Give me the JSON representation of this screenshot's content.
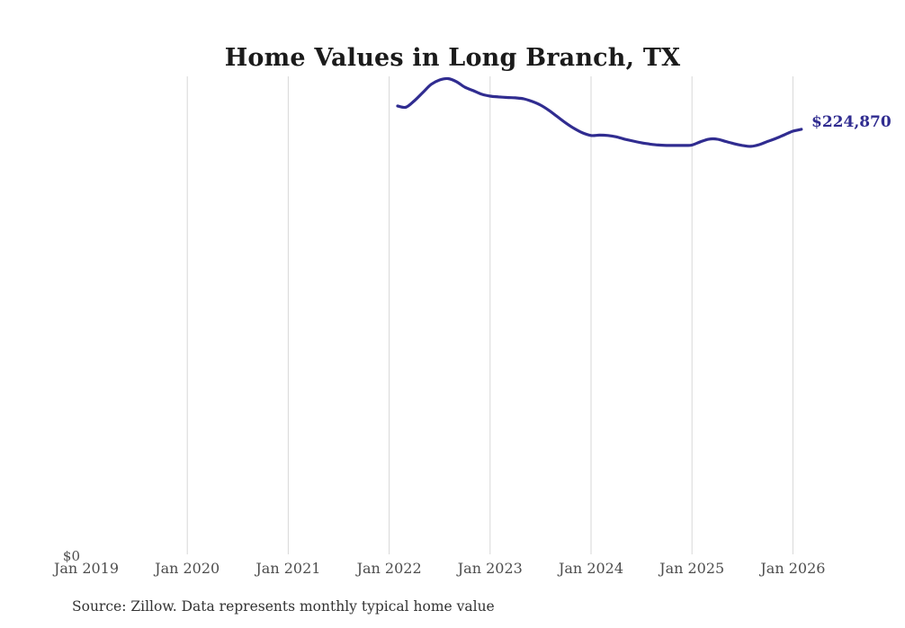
{
  "header": {
    "title": "Home Values in Long Branch, TX"
  },
  "footer": {
    "source_note": "Source: Zillow. Data represents monthly typical home value"
  },
  "colors": {
    "line": "#302c90",
    "grid": "#d7d7d7",
    "title": "#1b1b1b",
    "axis_label": "#4d4d4d",
    "source": "#333333",
    "background": "#ffffff"
  },
  "chart_data": {
    "type": "line",
    "title": "Home Values in Long Branch, TX",
    "xlabel": "",
    "ylabel": "",
    "grid": "vertical-only",
    "legend": "none",
    "ylim": [
      0,
      252700
    ],
    "x_tick_labels": [
      "Jan 2019",
      "Jan 2020",
      "Jan 2021",
      "Jan 2022",
      "Jan 2023",
      "Jan 2024",
      "Jan 2025",
      "Jan 2026"
    ],
    "y_axis_labels": [
      "$0"
    ],
    "end_label": "$224,870",
    "series": [
      {
        "name": "Monthly typical home value",
        "frequency": "monthly",
        "start_month": "2022-02",
        "start_month_index_from_jan_2019": 37,
        "end_month": "2026-02",
        "values": [
          237100,
          236500,
          239900,
          244200,
          248500,
          250800,
          251500,
          249900,
          247000,
          245200,
          243300,
          242300,
          241900,
          241600,
          241400,
          240900,
          239500,
          237600,
          234800,
          231500,
          228200,
          225300,
          223000,
          221600,
          221800,
          221600,
          220900,
          219700,
          218700,
          217800,
          217100,
          216600,
          216400,
          216400,
          216400,
          216600,
          218300,
          219700,
          219700,
          218500,
          217300,
          216400,
          215900,
          216800,
          218500,
          220100,
          222000,
          223900,
          224870
        ]
      }
    ]
  }
}
